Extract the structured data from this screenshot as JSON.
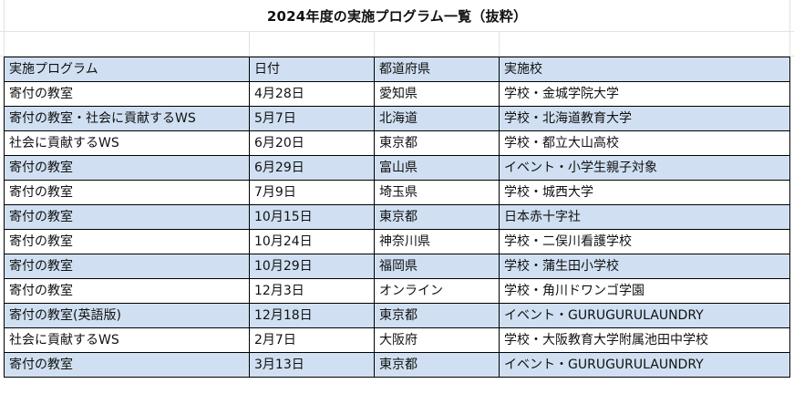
{
  "title": "2024年度の実施プログラム一覧（抜粋）",
  "columns": [
    "実施プログラム",
    "日付",
    "都道府県",
    "実施校"
  ],
  "rows": [
    [
      "寄付の教室",
      "4月28日",
      "愛知県",
      "学校・金城学院大学"
    ],
    [
      "寄付の教室・社会に貢献するWS",
      "5月7日",
      "北海道",
      "学校・北海道教育大学"
    ],
    [
      "社会に貢献するWS",
      "6月20日",
      "東京都",
      "学校・都立大山高校"
    ],
    [
      "寄付の教室",
      "6月29日",
      "富山県",
      "イベント・小学生親子対象"
    ],
    [
      "寄付の教室",
      "7月9日",
      "埼玉県",
      "学校・城西大学"
    ],
    [
      "寄付の教室",
      "10月15日",
      "東京都",
      "日本赤十字社"
    ],
    [
      "寄付の教室",
      "10月24日",
      "神奈川県",
      "学校・二俣川看護学校"
    ],
    [
      "寄付の教室",
      "10月29日",
      "福岡県",
      "学校・蒲生田小学校"
    ],
    [
      "寄付の教室",
      "12月3日",
      "オンライン",
      "学校・角川ドワンゴ学園"
    ],
    [
      "寄付の教室(英語版)",
      "12月18日",
      "東京都",
      "イベント・GURUGURULAUNDRY"
    ],
    [
      "社会に貢献するWS",
      "2月7日",
      "大阪府",
      "学校・大阪教育大学附属池田中学校"
    ],
    [
      "寄付の教室",
      "3月13日",
      "東京都",
      "イベント・GURUGURULAUNDRY"
    ]
  ],
  "colors": {
    "band_blue": "#d0e0f2",
    "border": "#000000",
    "gridline": "#e2e2e2"
  }
}
